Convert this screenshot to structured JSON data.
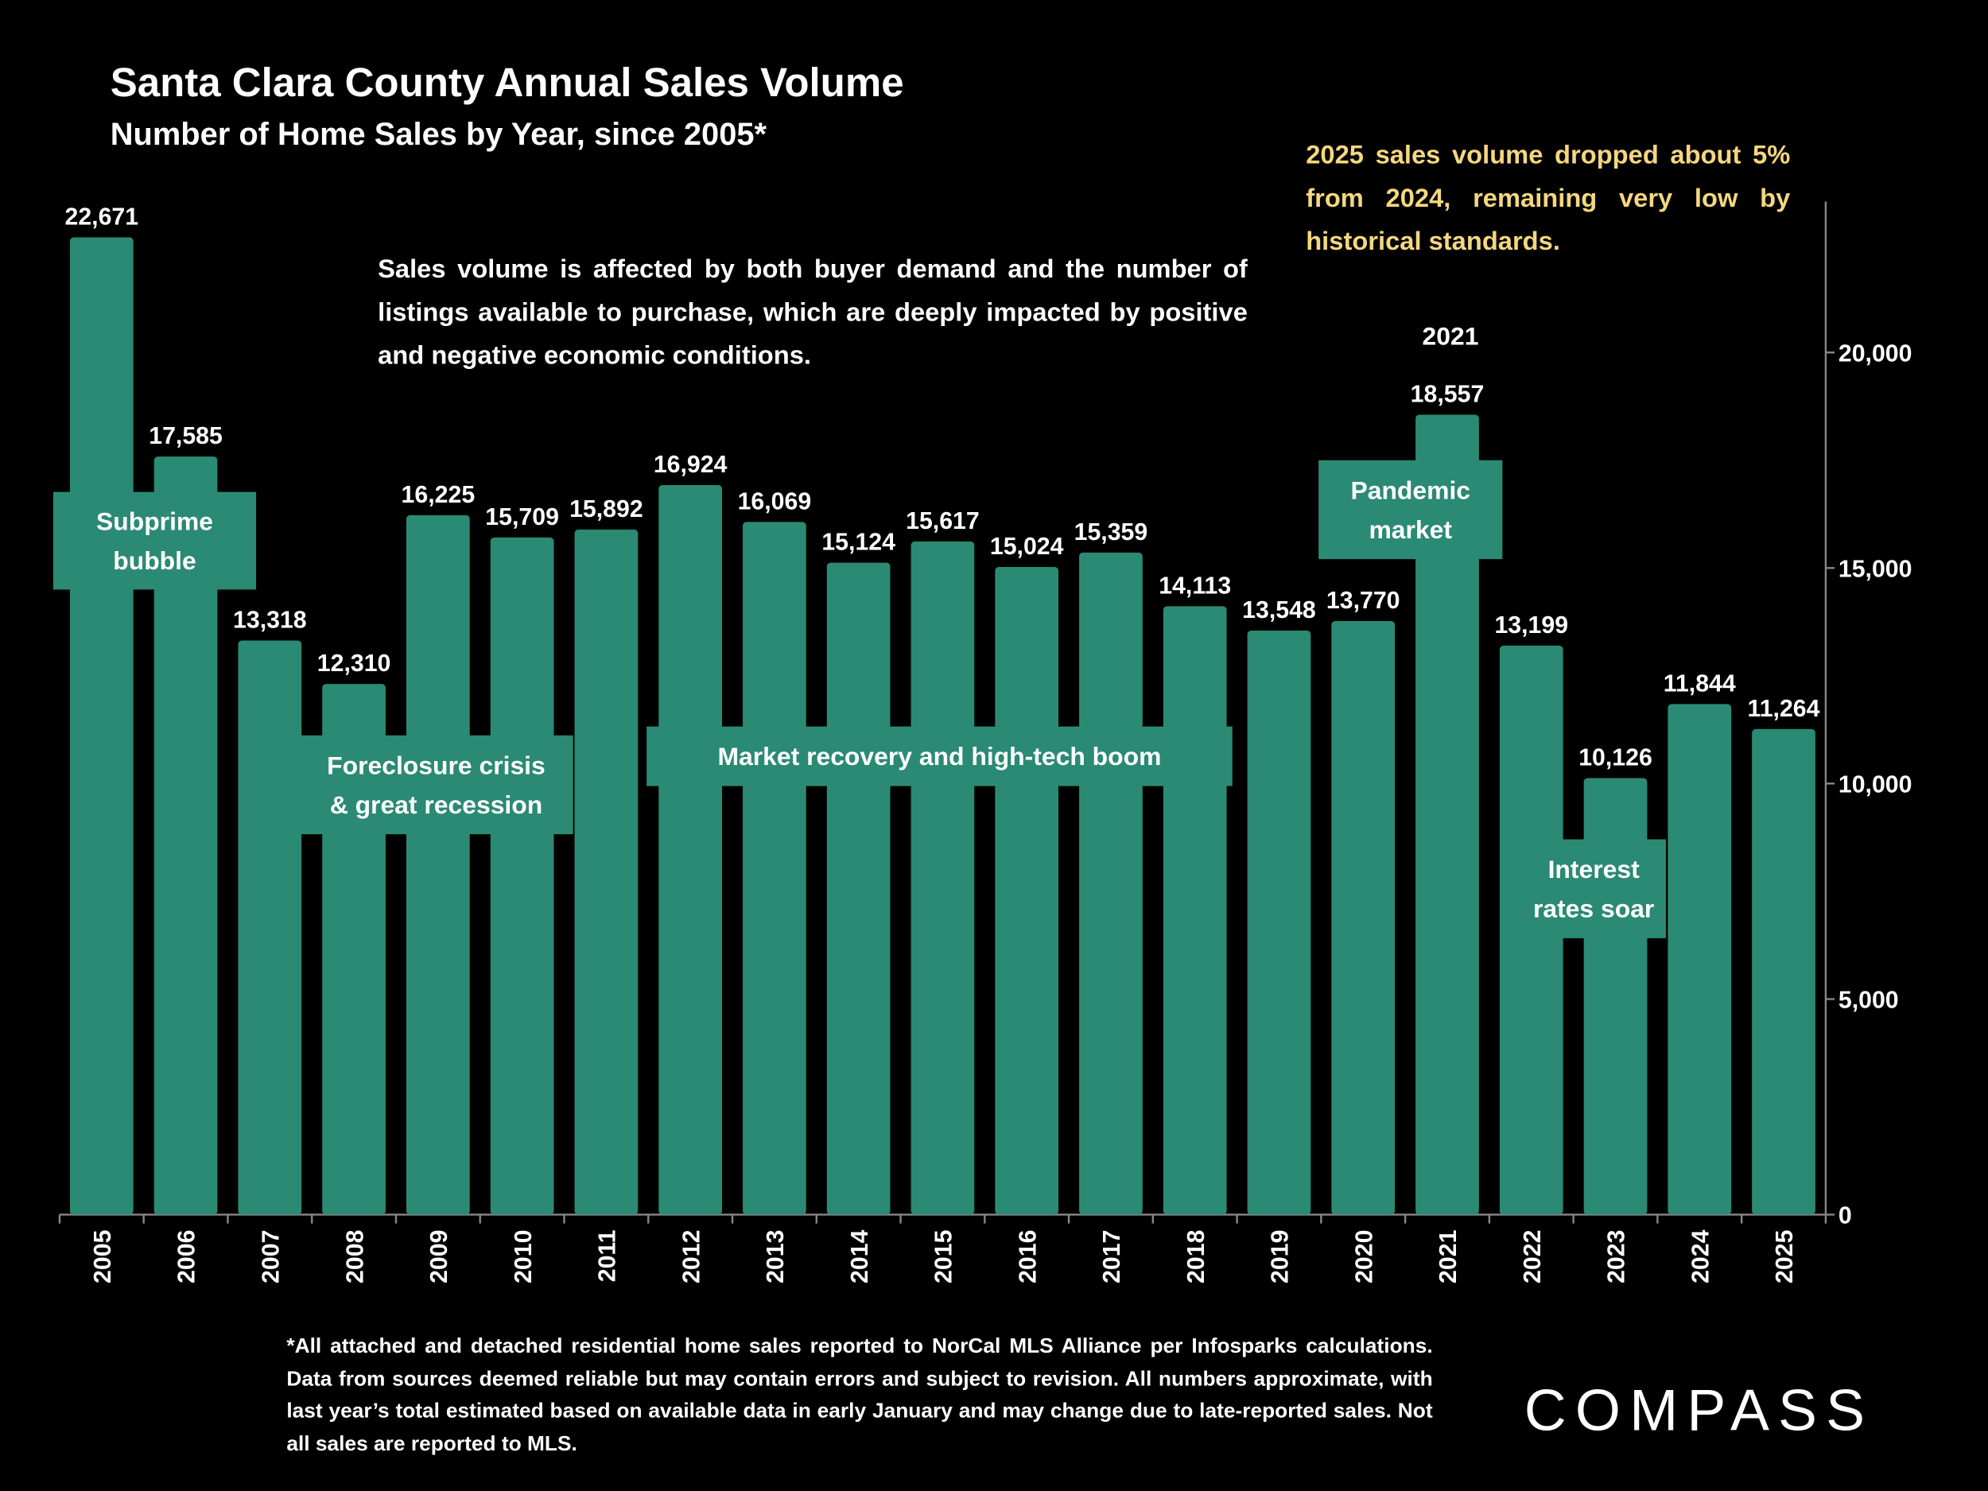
{
  "chart_data": {
    "type": "bar",
    "title": "Santa Clara County Annual Sales Volume",
    "subtitle": "Number of Home Sales by Year, since 2005*",
    "categories": [
      "2005",
      "2006",
      "2007",
      "2008",
      "2009",
      "2010",
      "2011",
      "2012",
      "2013",
      "2014",
      "2015",
      "2016",
      "2017",
      "2018",
      "2019",
      "2020",
      "2021",
      "2022",
      "2023",
      "2024",
      "2025"
    ],
    "values": [
      22671,
      17585,
      13318,
      12310,
      16225,
      15709,
      15892,
      16924,
      16069,
      15124,
      15617,
      15024,
      15359,
      14113,
      13548,
      13770,
      18557,
      13199,
      10126,
      11844,
      11264
    ],
    "value_labels": [
      "22,671",
      "17,585",
      "13,318",
      "12,310",
      "16,225",
      "15,709",
      "15,892",
      "16,924",
      "16,069",
      "15,124",
      "15,617",
      "15,024",
      "15,359",
      "14,113",
      "13,548",
      "13,770",
      "18,557",
      "13,199",
      "10,126",
      "11,844",
      "11,264"
    ],
    "color": "#2b8a74",
    "ylim": [
      0,
      23500
    ],
    "yticks": [
      0,
      {
        "value": 5000,
        "label": "5,000"
      },
      {
        "value": 10000,
        "label": "10,000"
      },
      {
        "value": 15000,
        "label": "15,000"
      },
      {
        "value": 20000,
        "label": "20,000"
      }
    ],
    "y_axis_side": "right",
    "annotations": [
      {
        "lines": [
          "Subprime",
          "bubble"
        ]
      },
      {
        "lines": [
          "Foreclosure crisis",
          "& great recession"
        ]
      },
      {
        "lines": [
          "Market recovery and high-tech boom"
        ]
      },
      {
        "lines": [
          "Pandemic",
          "market"
        ]
      },
      {
        "lines": [
          "2021"
        ]
      },
      {
        "lines": [
          "Interest",
          "rates soar"
        ]
      }
    ],
    "note": "Sales volume is affected by both buyer demand and the number of listings available to purchase, which are deeply impacted by positive and negative economic conditions.",
    "callout": "2025 sales volume dropped about 5% from 2024, remaining very low by historical standards.",
    "footnote": "*All attached and detached residential home sales reported to NorCal MLS Alliance per Infosparks calculations. Data from sources deemed reliable but may contain errors and subject to revision. All numbers approximate, with last year’s total estimated based on available data in early January and may change due to late-reported sales. Not all sales are reported to MLS.",
    "logo": "COMPASS"
  }
}
